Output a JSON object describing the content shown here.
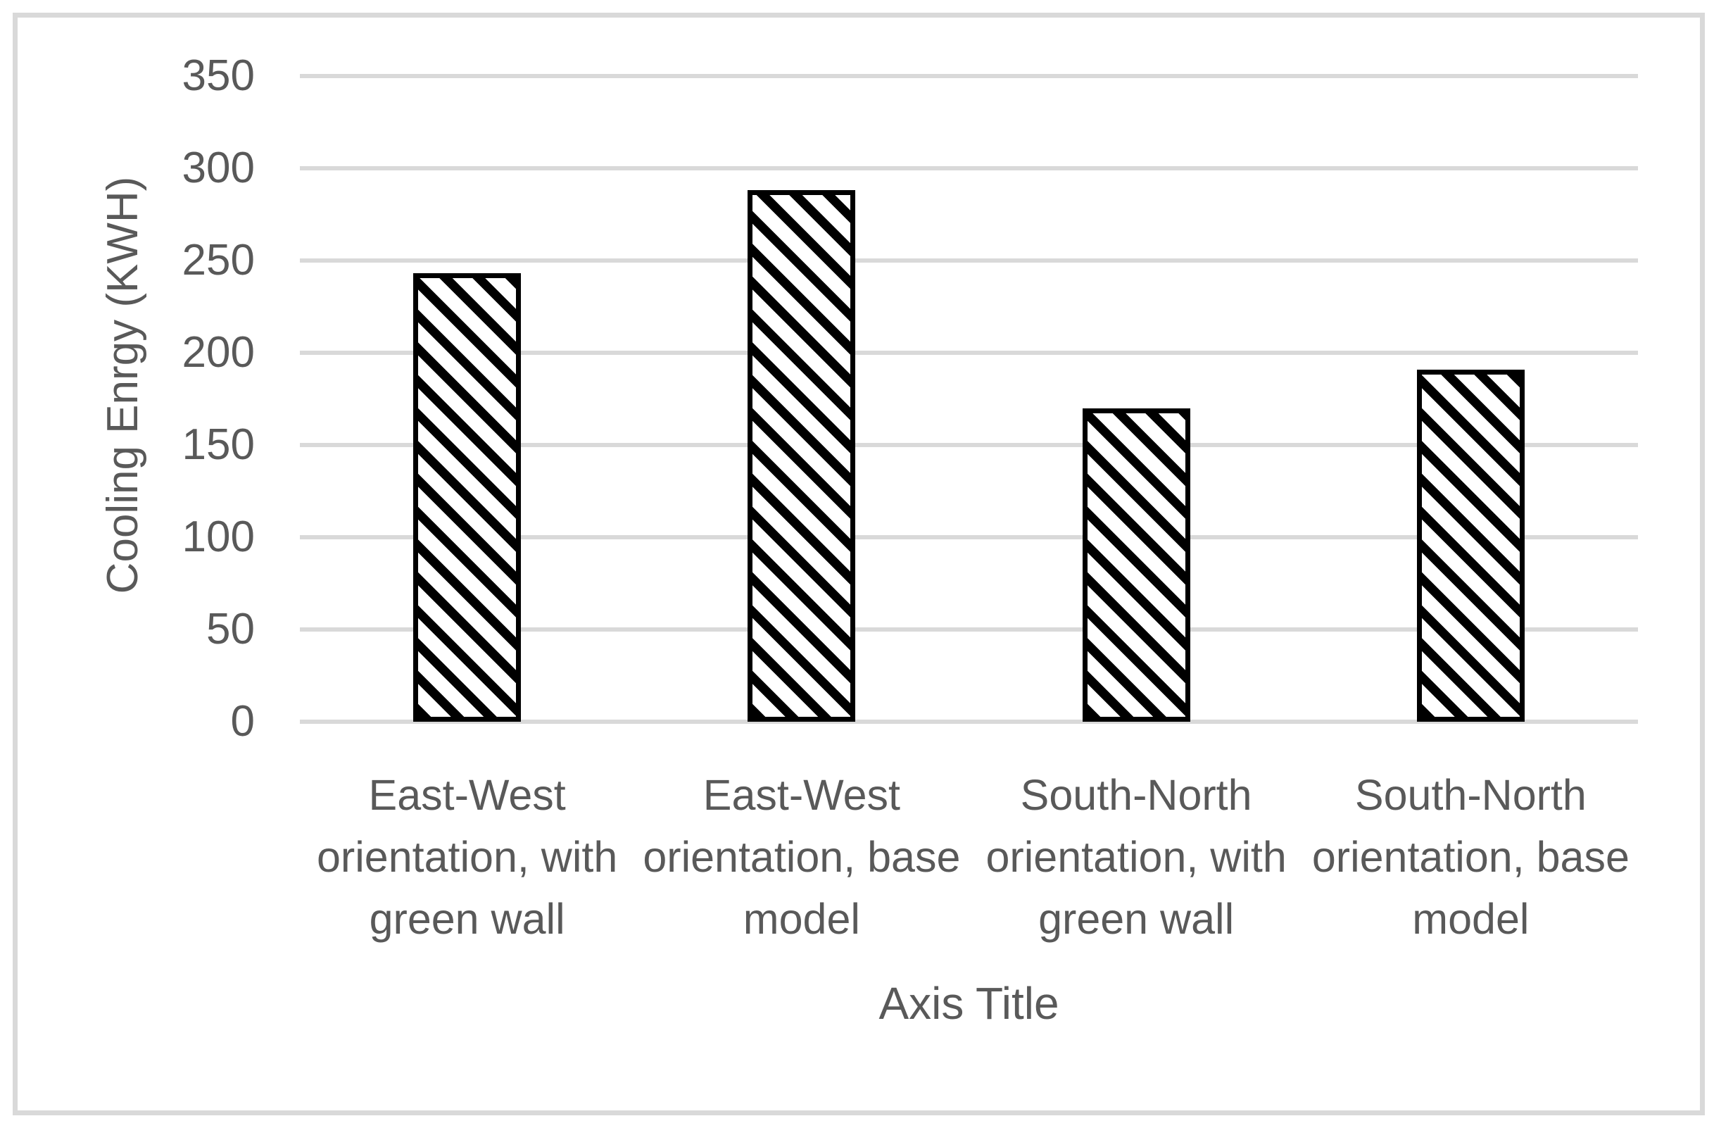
{
  "chart": {
    "background": "#ffffff",
    "border_color": "#d9d9d9",
    "gridline_color": "#d9d9d9",
    "text_color": "#595959",
    "bar_border_color": "#000000",
    "bar_fill": "black wide downward-diagonal hatch on white"
  },
  "chart_data": {
    "type": "bar",
    "categories": [
      "East-West orientation, with green wall",
      "East-West orientation, base model",
      "South-North orientation, with green wall",
      "South-North orientation, base model"
    ],
    "values": [
      243,
      288,
      170,
      191
    ],
    "xlabel": "Axis Title",
    "ylabel": "Cooling Enrgy (KWH)",
    "ylim": [
      0,
      350
    ],
    "yticks": [
      0,
      50,
      100,
      150,
      200,
      250,
      300,
      350
    ],
    "grid": "horizontal",
    "legend": "none"
  }
}
